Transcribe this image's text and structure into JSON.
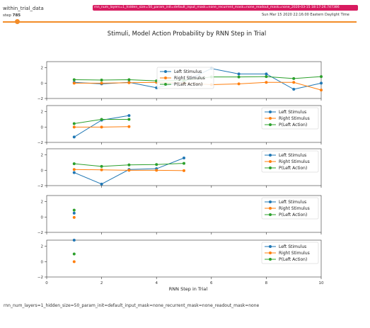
{
  "header": {
    "run_name": "within_trial_data",
    "step_prefix": "step",
    "step_value": "785",
    "run_tag": "rnn_num_layers=1_hidden_size=50_param_init=default_input_mask=none_recurrent_mask=none_readout_mask=none_2020-03-15 18:17:26.747386",
    "timestamp": "Sun Mar 15 2020 22:16:00 Eastern Daylight Time"
  },
  "footer": {
    "caption": "rnn_num_layers=1_hidden_size=50_param_init=default_input_mask=none_recurrent_mask=none_readout_mask=none"
  },
  "colors": {
    "left_stimulus": "#1f77b4",
    "right_stimulus": "#ff7f0e",
    "p_left_action": "#2ca02c",
    "slider": "#f28c28",
    "run_tag_bg": "#d81b60"
  },
  "chart_data": {
    "type": "line",
    "title": "Stimuli, Model Action Probability by RNN Step in Trial",
    "xlabel": "RNN Step in Trial",
    "xlim": [
      0,
      10
    ],
    "x_ticks": [
      0,
      2,
      4,
      6,
      8,
      10
    ],
    "ylim": [
      -2,
      2.8
    ],
    "y_ticks": [
      -2,
      0,
      2
    ],
    "y_tick_labels": [
      "−2",
      "0",
      "2"
    ],
    "legend_placement": [
      "center",
      "upper-right",
      "upper-right",
      "upper-right",
      "upper-right"
    ],
    "legend_labels": [
      "Left Stimulus",
      "Right Stimulus",
      "P(Left Action)"
    ],
    "subplots": [
      {
        "x": [
          1,
          2,
          3,
          4,
          5,
          6,
          7,
          8,
          9,
          10
        ],
        "series": [
          {
            "name": "Left Stimulus",
            "values": [
              0.1,
              -0.1,
              0.1,
              -0.6,
              0.2,
              1.9,
              1.2,
              1.2,
              -0.8,
              0.0
            ]
          },
          {
            "name": "Right Stimulus",
            "values": [
              0.0,
              0.0,
              0.05,
              0.1,
              0.0,
              -0.2,
              -0.1,
              0.1,
              0.1,
              -0.9
            ]
          },
          {
            "name": "P(Left Action)",
            "values": [
              0.45,
              0.4,
              0.45,
              0.3,
              0.35,
              0.8,
              0.8,
              0.85,
              0.6,
              0.85
            ]
          }
        ]
      },
      {
        "x": [
          1,
          2,
          3
        ],
        "series": [
          {
            "name": "Left Stimulus",
            "values": [
              -1.3,
              0.9,
              1.5
            ]
          },
          {
            "name": "Right Stimulus",
            "values": [
              0.0,
              0.0,
              0.05
            ]
          },
          {
            "name": "P(Left Action)",
            "values": [
              0.45,
              1.0,
              1.0
            ]
          }
        ]
      },
      {
        "x": [
          1,
          2,
          3,
          4,
          5
        ],
        "series": [
          {
            "name": "Left Stimulus",
            "values": [
              -0.3,
              -1.8,
              0.1,
              0.2,
              1.6
            ]
          },
          {
            "name": "Right Stimulus",
            "values": [
              0.1,
              0.05,
              0.0,
              0.0,
              -0.05
            ]
          },
          {
            "name": "P(Left Action)",
            "values": [
              0.85,
              0.5,
              0.7,
              0.75,
              0.9
            ]
          }
        ]
      },
      {
        "x": [
          1
        ],
        "series": [
          {
            "name": "Left Stimulus",
            "values": [
              0.5
            ]
          },
          {
            "name": "Right Stimulus",
            "values": [
              -0.05
            ]
          },
          {
            "name": "P(Left Action)",
            "values": [
              0.9
            ]
          }
        ]
      },
      {
        "x": [
          1
        ],
        "series": [
          {
            "name": "Left Stimulus",
            "values": [
              2.8
            ]
          },
          {
            "name": "Right Stimulus",
            "values": [
              0.0
            ]
          },
          {
            "name": "P(Left Action)",
            "values": [
              1.0
            ]
          }
        ]
      }
    ]
  }
}
